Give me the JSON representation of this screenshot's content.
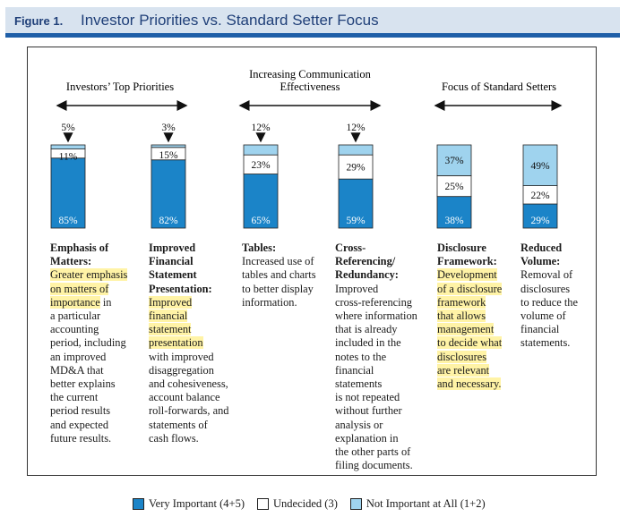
{
  "figure": {
    "label": "Figure 1.",
    "title": "Investor Priorities vs. Standard Setter Focus"
  },
  "colors": {
    "very": "#1b84c8",
    "undecided": "#ffffff",
    "not": "#9fd3ee",
    "header_bg": "#d8e3ef",
    "header_rule": "#1f5fa8",
    "highlight": "#fff3a6"
  },
  "group_labels": {
    "investors": "Investors’ Top Priorities",
    "communication_1": "Increasing Communication",
    "communication_2": "Effectiveness",
    "standard_setters": "Focus of Standard Setters"
  },
  "chart_data": {
    "type": "bar",
    "stacked": true,
    "categories": [
      "Emphasis of Matters",
      "Improved Financial Statement Presentation",
      "Tables",
      "Cross-Referencing/ Redundancy",
      "Disclosure Framework",
      "Reduced Volume"
    ],
    "series": [
      {
        "name": "Very Important (4+5)",
        "values": [
          85,
          82,
          65,
          59,
          38,
          29
        ],
        "labels": [
          "85%",
          "82%",
          "65%",
          "59%",
          "38%",
          "29%"
        ]
      },
      {
        "name": "Undecided (3)",
        "values": [
          11,
          15,
          23,
          29,
          25,
          22
        ],
        "labels": [
          "11%",
          "15%",
          "23%",
          "29%",
          "25%",
          "22%"
        ]
      },
      {
        "name": "Not Important at All (1+2)",
        "values": [
          5,
          3,
          12,
          12,
          37,
          49
        ],
        "labels": [
          "5%",
          "3%",
          "12%",
          "12%",
          "37%",
          "49%"
        ]
      }
    ],
    "ylim": [
      0,
      100
    ],
    "legend": [
      "Very Important (4+5)",
      "Undecided (3)",
      "Not Important at All (1+2)"
    ]
  },
  "descriptions": [
    {
      "heading": [
        "Emphasis of",
        "Matters:"
      ],
      "lines": [
        [
          "Greater emphasis",
          true
        ],
        [
          "on matters of",
          true
        ],
        [
          "importance",
          true,
          " in"
        ],
        [
          "a particular",
          false
        ],
        [
          "accounting",
          false
        ],
        [
          "period, including",
          false
        ],
        [
          "an improved",
          false
        ],
        [
          "MD&A that",
          false
        ],
        [
          "better explains",
          false
        ],
        [
          "the current",
          false
        ],
        [
          "period results",
          false
        ],
        [
          "and expected",
          false
        ],
        [
          "future results.",
          false
        ]
      ]
    },
    {
      "heading": [
        "Improved",
        "Financial",
        "Statement",
        "Presentation:"
      ],
      "lines": [
        [
          "Improved",
          true
        ],
        [
          "financial",
          true
        ],
        [
          "statement",
          true
        ],
        [
          "presentation",
          true
        ],
        [
          "with improved",
          false
        ],
        [
          "disaggregation",
          false
        ],
        [
          "and cohesiveness,",
          false
        ],
        [
          "account balance",
          false
        ],
        [
          "roll-forwards, and",
          false
        ],
        [
          "statements of",
          false
        ],
        [
          "cash flows.",
          false
        ]
      ]
    },
    {
      "heading": [
        "Tables:"
      ],
      "lines": [
        [
          "Increased use of",
          false
        ],
        [
          "tables and charts",
          false
        ],
        [
          "to better display",
          false
        ],
        [
          "information.",
          false
        ]
      ]
    },
    {
      "heading": [
        "Cross-",
        "Referencing/",
        "Redundancy:"
      ],
      "lines": [
        [
          "Improved",
          false
        ],
        [
          "cross-referencing",
          false
        ],
        [
          "where information",
          false
        ],
        [
          "that is already",
          false
        ],
        [
          "included in the",
          false
        ],
        [
          "notes to the",
          false
        ],
        [
          "financial",
          false
        ],
        [
          "statements",
          false
        ],
        [
          "is not repeated",
          false
        ],
        [
          "without further",
          false
        ],
        [
          "analysis or",
          false
        ],
        [
          "explanation in",
          false
        ],
        [
          "the other parts of",
          false
        ],
        [
          "filing documents.",
          false
        ]
      ]
    },
    {
      "heading": [
        "Disclosure",
        "Framework:"
      ],
      "lines": [
        [
          "Development",
          true
        ],
        [
          "of a disclosure",
          true
        ],
        [
          "framework",
          true
        ],
        [
          "that allows",
          true
        ],
        [
          "management",
          true
        ],
        [
          "to decide what",
          true
        ],
        [
          "disclosures",
          true
        ],
        [
          "are relevant",
          true
        ],
        [
          "and necessary.",
          true
        ]
      ]
    },
    {
      "heading": [
        "Reduced",
        "Volume:"
      ],
      "lines": [
        [
          "Removal of",
          false
        ],
        [
          "disclosures",
          false
        ],
        [
          "to reduce the",
          false
        ],
        [
          "volume of",
          false
        ],
        [
          "financial",
          false
        ],
        [
          "statements.",
          false
        ]
      ]
    }
  ]
}
